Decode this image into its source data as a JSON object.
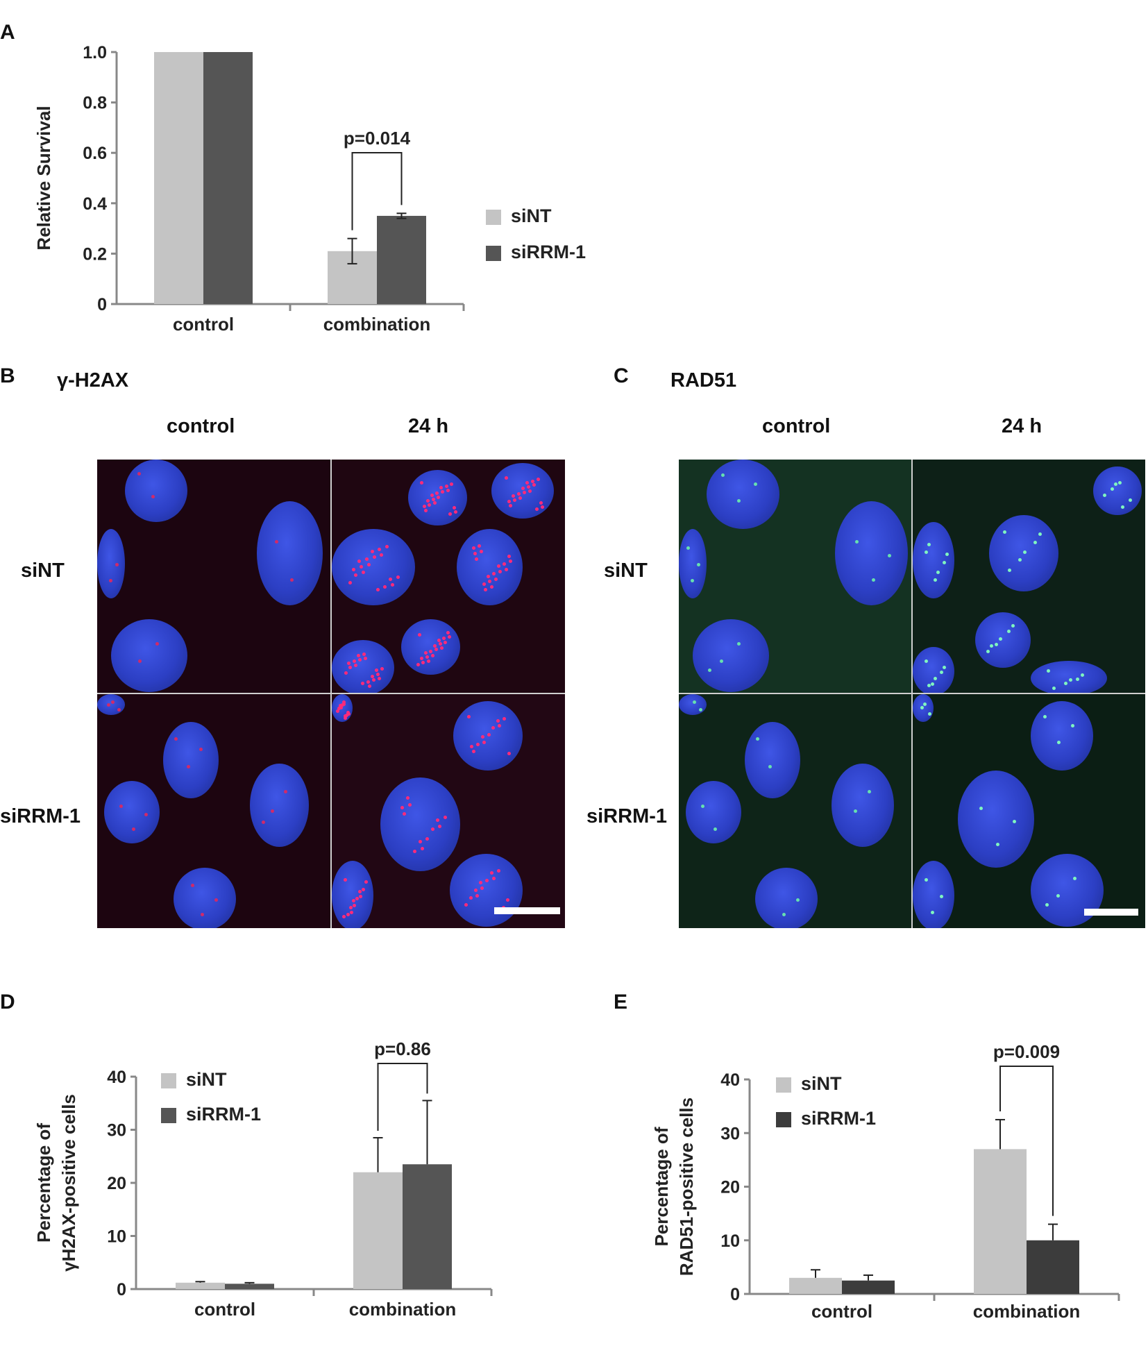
{
  "panels": {
    "A": {
      "letter": "A"
    },
    "B": {
      "letter": "B",
      "title": "γ-H2AX",
      "col_headers": [
        "control",
        "24 h"
      ],
      "row_labels": [
        "siNT",
        "siRRM-1"
      ]
    },
    "C": {
      "letter": "C",
      "title": "RAD51",
      "col_headers": [
        "control",
        "24 h"
      ],
      "row_labels": [
        "siNT",
        "siRRM-1"
      ]
    },
    "D": {
      "letter": "D"
    },
    "E": {
      "letter": "E"
    }
  },
  "colors": {
    "siNT": "#c4c4c4",
    "siRRM-1": "#555555",
    "siRRM-1_E": "#3c3c3c",
    "nucleus": "#2b3fbf"
  },
  "chart_data": [
    {
      "panel": "A",
      "type": "bar",
      "categories": [
        "control",
        "combination"
      ],
      "series": [
        {
          "name": "siNT",
          "values": [
            1.0,
            0.21
          ],
          "errors": [
            0.0,
            0.05
          ]
        },
        {
          "name": "siRRM-1",
          "values": [
            1.0,
            0.35
          ],
          "errors": [
            0.0,
            0.01
          ]
        }
      ],
      "ylabel": "Relative Survival",
      "ylim": [
        0,
        1.0
      ],
      "yticks": [
        "0",
        "0.2",
        "0.4",
        "0.6",
        "0.8",
        "1.0"
      ],
      "annotation": "p=0.014",
      "legend": "right"
    },
    {
      "panel": "D",
      "type": "bar",
      "categories": [
        "control",
        "combination"
      ],
      "series": [
        {
          "name": "siNT",
          "values": [
            1.2,
            22.0
          ],
          "errors": [
            0.2,
            6.5
          ]
        },
        {
          "name": "siRRM-1",
          "values": [
            1.0,
            23.5
          ],
          "errors": [
            0.2,
            12.0
          ]
        }
      ],
      "ylabel_line1": "Percentage of",
      "ylabel_line2": "γH2AX-positive cells",
      "ylim": [
        0,
        40
      ],
      "yticks": [
        "0",
        "10",
        "20",
        "30",
        "40"
      ],
      "annotation": "p=0.86",
      "legend": "top-left"
    },
    {
      "panel": "E",
      "type": "bar",
      "categories": [
        "control",
        "combination"
      ],
      "series": [
        {
          "name": "siNT",
          "values": [
            3.0,
            27.0
          ],
          "errors": [
            1.5,
            5.5
          ]
        },
        {
          "name": "siRRM-1",
          "values": [
            2.5,
            10.0
          ],
          "errors": [
            1.0,
            3.0
          ]
        }
      ],
      "ylabel_line1": "Percentage of",
      "ylabel_line2": "RAD51-positive cells",
      "ylim": [
        0,
        40
      ],
      "yticks": [
        "0",
        "10",
        "20",
        "30",
        "40"
      ],
      "annotation": "p=0.009",
      "legend": "top-left"
    }
  ]
}
